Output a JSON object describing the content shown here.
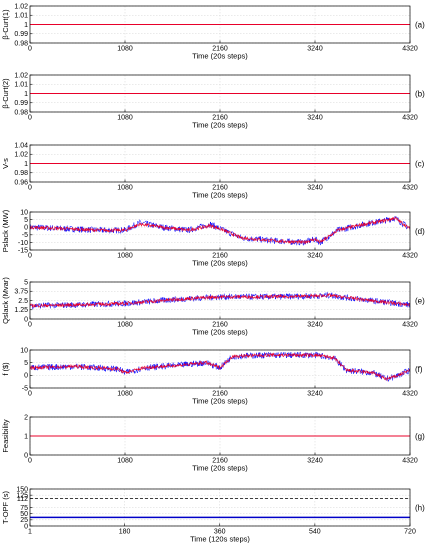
{
  "chart_data": [
    {
      "type": "line",
      "ylabel": "β-Curt(1)",
      "xlabel": "Time (20s steps)",
      "tag": "(a)",
      "xlim": [
        0,
        4320
      ],
      "xticks": [
        0,
        1080,
        2160,
        3240,
        4320
      ],
      "ylim": [
        0.98,
        1.02
      ],
      "yticks": [
        "0.98",
        "0.99",
        "1",
        "1.01",
        "1.02"
      ],
      "series": [
        {
          "style": "dashed",
          "color": "#000000",
          "values_note": "constant",
          "constant": 1.0
        },
        {
          "style": "solid",
          "color": "#e8002a",
          "constant": 1.0
        }
      ]
    },
    {
      "type": "line",
      "ylabel": "β-Curt(2)",
      "xlabel": "Time (20s steps)",
      "tag": "(b)",
      "xlim": [
        0,
        4320
      ],
      "xticks": [
        0,
        1080,
        2160,
        3240,
        4320
      ],
      "ylim": [
        0.98,
        1.02
      ],
      "yticks": [
        "0.98",
        "0.99",
        "1",
        "1.01",
        "1.02"
      ],
      "series": [
        {
          "style": "dashed",
          "color": "#000000",
          "constant": 1.0
        },
        {
          "style": "solid",
          "color": "#e8002a",
          "constant": 1.0
        }
      ]
    },
    {
      "type": "line",
      "ylabel": "V-s",
      "xlabel": "Time (20s steps)",
      "tag": "(c)",
      "xlim": [
        0,
        4320
      ],
      "xticks": [
        0,
        1080,
        2160,
        3240,
        4320
      ],
      "ylim": [
        0.96,
        1.04
      ],
      "yticks": [
        "0.96",
        "0.98",
        "1",
        "1.02",
        "1.04"
      ],
      "series": [
        {
          "style": "dashed",
          "color": "#000000",
          "constant": 1.0
        },
        {
          "style": "solid",
          "color": "#e8002a",
          "constant": 1.0
        }
      ]
    },
    {
      "type": "line",
      "ylabel": "Pslack (MW)",
      "xlabel": "Time (20s steps)",
      "tag": "(d)",
      "xlim": [
        0,
        4320
      ],
      "xticks": [
        0,
        1080,
        2160,
        3240,
        4320
      ],
      "ylim": [
        -15,
        10
      ],
      "yticks": [
        "-15",
        "-10",
        "-5",
        "0",
        "5",
        "10"
      ],
      "series": [
        {
          "color": "#0000ff",
          "x": [
            0,
            400,
            800,
            1080,
            1250,
            1500,
            1800,
            2050,
            2160,
            2400,
            2800,
            3100,
            3240,
            3300,
            3500,
            3800,
            4000,
            4150,
            4320
          ],
          "y": [
            0,
            -1,
            -2,
            -2,
            3,
            0,
            -2,
            2,
            -1,
            -7,
            -9,
            -10,
            -8,
            -10,
            -2,
            2,
            4,
            6,
            -1
          ]
        },
        {
          "color": "#e8002a",
          "x": [
            0,
            400,
            800,
            1080,
            1250,
            1500,
            1800,
            2050,
            2160,
            2400,
            2800,
            3100,
            3240,
            3300,
            3500,
            3800,
            4000,
            4150,
            4320
          ],
          "y": [
            0,
            -1,
            -2,
            -2,
            2,
            0,
            -2,
            1,
            -1,
            -7,
            -9,
            -10,
            -8,
            -10,
            -2,
            2,
            4,
            6,
            -1
          ]
        }
      ]
    },
    {
      "type": "line",
      "ylabel": "Qslack (Mvar)",
      "xlabel": "Time (20s steps)",
      "tag": "(e)",
      "xlim": [
        0,
        4320
      ],
      "xticks": [
        0,
        1080,
        2160,
        3240,
        4320
      ],
      "ylim": [
        0,
        5
      ],
      "yticks": [
        "0",
        "1.25",
        "2.5",
        "3.75",
        "5"
      ],
      "series": [
        {
          "color": "#0000ff",
          "x": [
            0,
            500,
            1080,
            1600,
            2160,
            2700,
            3240,
            3400,
            3800,
            4320
          ],
          "y": [
            1.8,
            1.9,
            2.1,
            2.6,
            3.0,
            3.0,
            3.1,
            3.2,
            2.6,
            1.9
          ]
        },
        {
          "color": "#e8002a",
          "x": [
            0,
            500,
            1080,
            1600,
            2160,
            2700,
            3240,
            3400,
            3800,
            4320
          ],
          "y": [
            1.8,
            1.9,
            2.1,
            2.6,
            3.0,
            3.0,
            3.1,
            3.2,
            2.6,
            1.9
          ]
        }
      ]
    },
    {
      "type": "line",
      "ylabel": "f ($)",
      "xlabel": "Time (20s steps)",
      "tag": "(f)",
      "xlim": [
        0,
        4320
      ],
      "xticks": [
        0,
        1080,
        2160,
        3240,
        4320
      ],
      "ylim": [
        -5,
        10
      ],
      "yticks": [
        "-5",
        "0",
        "5",
        "10"
      ],
      "series": [
        {
          "color": "#0000ff",
          "x": [
            0,
            500,
            1000,
            1080,
            1300,
            1700,
            2000,
            2160,
            2300,
            2700,
            3240,
            3450,
            3600,
            3900,
            4050,
            4150,
            4320
          ],
          "y": [
            3,
            3.5,
            2.5,
            1,
            3,
            4,
            5,
            3,
            7.5,
            8,
            8,
            7,
            2,
            1,
            -1.5,
            -0.5,
            2
          ]
        },
        {
          "color": "#e8002a",
          "x": [
            0,
            500,
            1000,
            1080,
            1300,
            1700,
            2000,
            2160,
            2300,
            2700,
            3240,
            3450,
            3600,
            3900,
            4050,
            4150,
            4320
          ],
          "y": [
            3,
            3.5,
            2.5,
            1,
            3,
            4,
            5,
            3,
            7.5,
            8,
            8,
            7,
            2,
            1,
            -1.5,
            -0.5,
            2
          ]
        }
      ]
    },
    {
      "type": "line",
      "ylabel": "Feasibility",
      "xlabel": "Time (20s steps)",
      "tag": "(g)",
      "xlim": [
        0,
        4320
      ],
      "xticks": [
        0,
        1080,
        2160,
        3240,
        4320
      ],
      "ylim": [
        0,
        2
      ],
      "yticks": [
        "0",
        "1",
        "2"
      ],
      "series": [
        {
          "color": "#0000ff",
          "constant": 1.0
        },
        {
          "color": "#e8002a",
          "constant": 1.0
        }
      ]
    },
    {
      "type": "line",
      "ylabel": "T-OPF (s)",
      "xlabel": "Time (120s steps)",
      "tag": "(h)",
      "xlim": [
        1,
        720
      ],
      "xticks": [
        1,
        180,
        360,
        540,
        720
      ],
      "ylim": [
        0,
        150
      ],
      "yticks": [
        "0",
        "25",
        "50",
        "75",
        "112",
        "125",
        "150"
      ],
      "ytick_values": [
        0,
        25,
        50,
        75,
        112,
        125,
        150
      ],
      "series": [
        {
          "style": "dashed",
          "color": "#000000",
          "constant": 112
        },
        {
          "style": "solid",
          "color": "#0000c8",
          "constant": 35
        }
      ]
    }
  ]
}
